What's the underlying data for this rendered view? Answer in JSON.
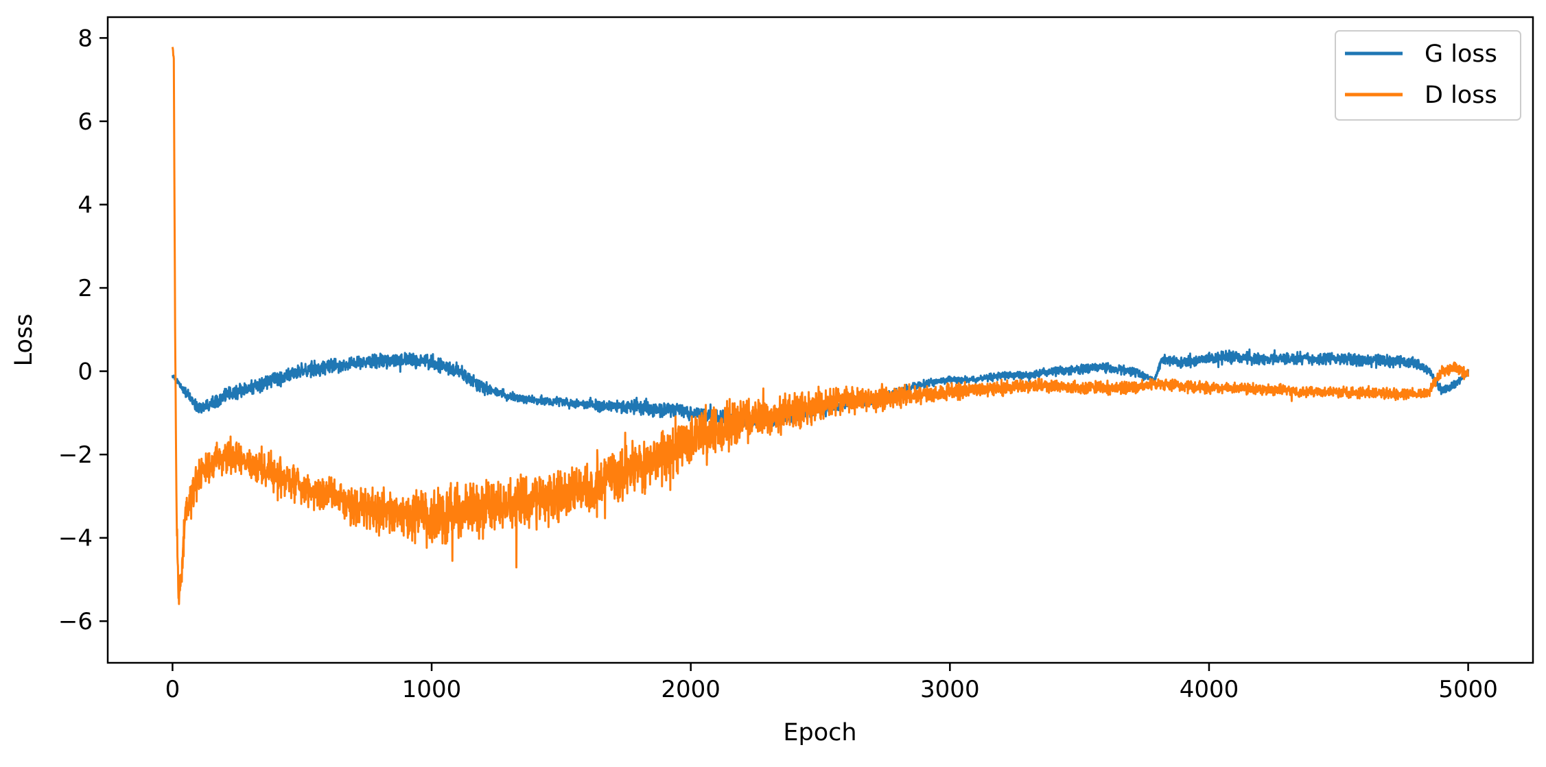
{
  "colors": {
    "g_loss": "#1f77b4",
    "d_loss": "#ff7f0e",
    "axes": "#000000",
    "background": "#ffffff"
  },
  "chart_data": {
    "type": "line",
    "title": "",
    "xlabel": "Epoch",
    "ylabel": "Loss",
    "xlim": [
      -250,
      5250
    ],
    "ylim": [
      -7,
      8.5
    ],
    "xticks": [
      0,
      1000,
      2000,
      3000,
      4000,
      5000
    ],
    "xtick_labels": [
      "0",
      "1000",
      "2000",
      "3000",
      "4000",
      "5000"
    ],
    "yticks": [
      -6,
      -4,
      -2,
      0,
      2,
      4,
      6,
      8
    ],
    "ytick_labels": [
      "−6",
      "−4",
      "−2",
      "0",
      "2",
      "4",
      "6",
      "8"
    ],
    "grid": false,
    "legend_position": "top-right",
    "series": [
      {
        "name": "G loss",
        "color": "#1f77b4",
        "x": [
          0,
          50,
          100,
          200,
          300,
          400,
          500,
          600,
          700,
          800,
          900,
          1000,
          1100,
          1200,
          1300,
          1400,
          1500,
          1600,
          1700,
          1800,
          1900,
          2000,
          2100,
          2200,
          2300,
          2400,
          2500,
          2600,
          2700,
          2800,
          2900,
          3000,
          3100,
          3200,
          3300,
          3400,
          3500,
          3600,
          3700,
          3790,
          3820,
          3900,
          4000,
          4100,
          4200,
          4300,
          4400,
          4500,
          4600,
          4700,
          4800,
          4850,
          4900,
          4950,
          5000
        ],
        "y": [
          -0.1,
          -0.5,
          -0.9,
          -0.6,
          -0.4,
          -0.2,
          0.0,
          0.1,
          0.2,
          0.25,
          0.3,
          0.2,
          0.0,
          -0.4,
          -0.6,
          -0.7,
          -0.75,
          -0.8,
          -0.85,
          -0.85,
          -0.9,
          -1.0,
          -1.1,
          -1.2,
          -1.2,
          -1.1,
          -0.9,
          -0.8,
          -0.7,
          -0.5,
          -0.3,
          -0.2,
          -0.2,
          -0.1,
          -0.1,
          0.0,
          0.05,
          0.1,
          0.0,
          -0.2,
          0.3,
          0.2,
          0.3,
          0.35,
          0.3,
          0.3,
          0.3,
          0.3,
          0.25,
          0.25,
          0.2,
          0.0,
          -0.5,
          -0.3,
          0.0
        ],
        "noise": [
          0.05,
          0.15,
          0.2,
          0.25,
          0.25,
          0.25,
          0.25,
          0.25,
          0.25,
          0.25,
          0.25,
          0.25,
          0.25,
          0.2,
          0.15,
          0.15,
          0.15,
          0.15,
          0.2,
          0.25,
          0.25,
          0.25,
          0.25,
          0.2,
          0.2,
          0.2,
          0.2,
          0.15,
          0.15,
          0.15,
          0.12,
          0.12,
          0.12,
          0.12,
          0.12,
          0.15,
          0.15,
          0.15,
          0.15,
          0.1,
          0.15,
          0.2,
          0.2,
          0.2,
          0.2,
          0.2,
          0.2,
          0.2,
          0.2,
          0.2,
          0.2,
          0.15,
          0.15,
          0.15,
          0.15
        ]
      },
      {
        "name": "D loss",
        "color": "#ff7f0e",
        "x": [
          0,
          5,
          10,
          15,
          20,
          25,
          35,
          50,
          100,
          200,
          300,
          400,
          500,
          600,
          700,
          800,
          900,
          1000,
          1100,
          1200,
          1300,
          1400,
          1500,
          1600,
          1700,
          1800,
          1900,
          2000,
          2100,
          2200,
          2300,
          2400,
          2500,
          2600,
          2700,
          2800,
          2900,
          3000,
          3100,
          3200,
          3300,
          3400,
          3500,
          3600,
          3700,
          3800,
          3900,
          4000,
          4100,
          4200,
          4300,
          4400,
          4500,
          4600,
          4700,
          4800,
          4850,
          4900,
          4950,
          5000
        ],
        "y": [
          7.8,
          7.5,
          1.0,
          -3.0,
          -4.8,
          -5.5,
          -5.0,
          -3.5,
          -2.5,
          -2.0,
          -2.2,
          -2.5,
          -2.8,
          -3.0,
          -3.2,
          -3.4,
          -3.5,
          -3.5,
          -3.4,
          -3.3,
          -3.2,
          -3.1,
          -3.0,
          -2.8,
          -2.6,
          -2.3,
          -2.0,
          -1.6,
          -1.4,
          -1.2,
          -1.1,
          -0.9,
          -0.8,
          -0.7,
          -0.65,
          -0.6,
          -0.55,
          -0.5,
          -0.45,
          -0.4,
          -0.35,
          -0.35,
          -0.4,
          -0.4,
          -0.4,
          -0.3,
          -0.35,
          -0.4,
          -0.4,
          -0.45,
          -0.45,
          -0.5,
          -0.5,
          -0.5,
          -0.55,
          -0.55,
          -0.5,
          0.0,
          0.1,
          -0.1
        ],
        "noise": [
          0.05,
          0.05,
          0.3,
          0.7,
          0.8,
          0.7,
          0.6,
          0.6,
          0.6,
          0.55,
          0.55,
          0.55,
          0.6,
          0.6,
          0.65,
          0.7,
          0.8,
          0.9,
          0.95,
          0.95,
          0.9,
          0.9,
          0.9,
          0.9,
          0.9,
          0.9,
          0.9,
          0.9,
          0.85,
          0.8,
          0.7,
          0.6,
          0.5,
          0.45,
          0.4,
          0.35,
          0.3,
          0.3,
          0.25,
          0.25,
          0.2,
          0.2,
          0.2,
          0.2,
          0.2,
          0.2,
          0.18,
          0.18,
          0.18,
          0.18,
          0.18,
          0.18,
          0.18,
          0.18,
          0.18,
          0.18,
          0.18,
          0.2,
          0.2,
          0.2
        ]
      }
    ]
  }
}
